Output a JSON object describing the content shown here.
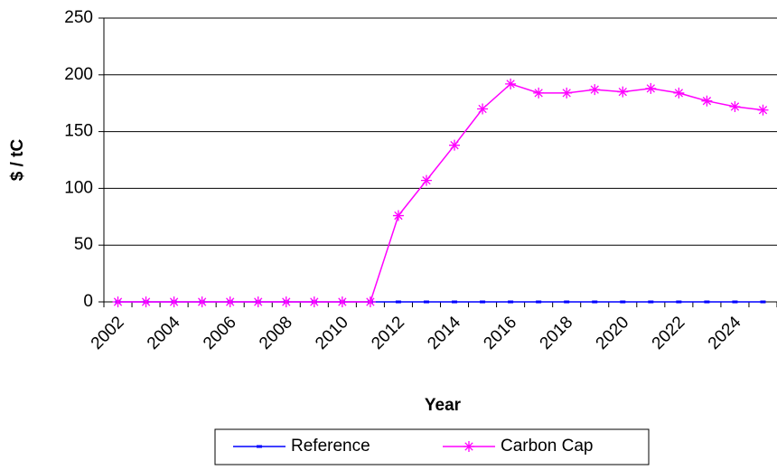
{
  "chart_data": {
    "type": "line",
    "x_label": "Year",
    "y_label": "$ / tC",
    "categories": [
      "2002",
      null,
      "2004",
      null,
      "2006",
      null,
      "2008",
      null,
      "2010",
      null,
      "2012",
      null,
      "2014",
      null,
      "2016",
      null,
      "2018",
      null,
      "2020",
      null,
      "2022",
      null,
      "2024",
      null
    ],
    "series": [
      {
        "name": "Reference",
        "color": "#0000ff",
        "values": [
          0,
          0,
          0,
          0,
          0,
          0,
          0,
          0,
          0,
          0,
          0,
          0,
          0,
          0,
          0,
          0,
          0,
          0,
          0,
          0,
          0,
          0,
          0,
          0
        ]
      },
      {
        "name": "Carbon Cap",
        "color": "#ff00ff",
        "values": [
          0,
          0,
          0,
          0,
          0,
          0,
          0,
          0,
          0,
          0,
          76,
          107,
          138,
          170,
          192,
          184,
          184,
          187,
          185,
          188,
          184,
          177,
          172,
          169
        ]
      }
    ],
    "ylim": [
      0,
      250
    ],
    "yticks": [
      0,
      50,
      100,
      150,
      200,
      250
    ],
    "grid": true,
    "legend": "bottom"
  }
}
